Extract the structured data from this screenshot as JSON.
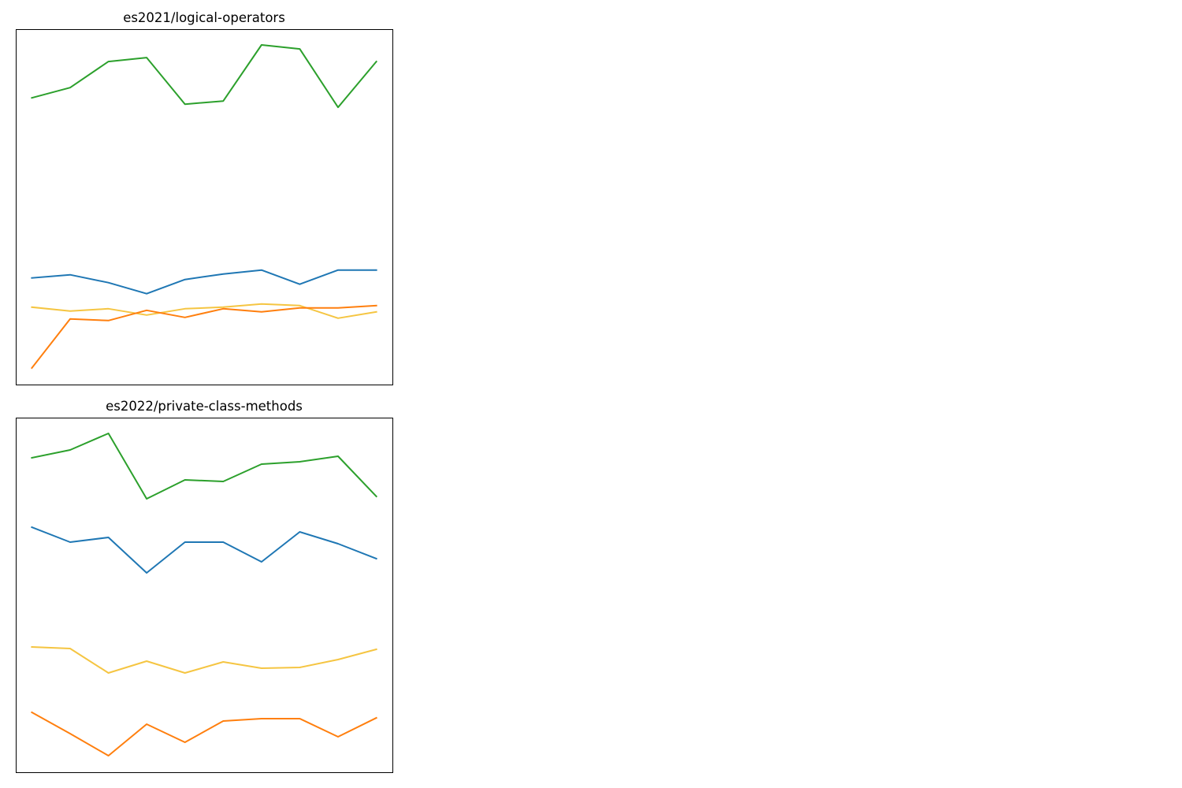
{
  "chart_data": [
    {
      "type": "line",
      "title": "es2021/logical-operators",
      "xlabel": "",
      "ylabel": "",
      "x": [
        1,
        2,
        3,
        4,
        5,
        6,
        7,
        8,
        9,
        10
      ],
      "ylim": [
        0,
        450
      ],
      "xlim": [
        0.58,
        10.42
      ],
      "grid": false,
      "legend": "none",
      "ticks": "none",
      "series": [
        {
          "color": "#2ca02c",
          "values": [
            363,
            376,
            409,
            414,
            355,
            359,
            430,
            425,
            351,
            409
          ]
        },
        {
          "color": "#1f77b4",
          "values": [
            135,
            139,
            129,
            115,
            133,
            140,
            145,
            127,
            145,
            145
          ]
        },
        {
          "color": "#f5c542",
          "values": [
            98,
            93,
            96,
            88,
            96,
            98,
            102,
            100,
            84,
            92
          ]
        },
        {
          "color": "#ff7f0e",
          "values": [
            21,
            83,
            81,
            94,
            85,
            96,
            92,
            97,
            97,
            100
          ]
        }
      ]
    },
    {
      "type": "line",
      "title": "es2022/private-class-methods",
      "xlabel": "",
      "ylabel": "",
      "x": [
        1,
        2,
        3,
        4,
        5,
        6,
        7,
        8,
        9,
        10
      ],
      "ylim": [
        0,
        450
      ],
      "xlim": [
        0.58,
        10.42
      ],
      "grid": false,
      "legend": "none",
      "ticks": "none",
      "series": [
        {
          "color": "#2ca02c",
          "values": [
            399,
            409,
            430,
            347,
            371,
            369,
            391,
            394,
            401,
            350
          ]
        },
        {
          "color": "#1f77b4",
          "values": [
            311,
            292,
            298,
            253,
            292,
            292,
            267,
            305,
            290,
            271
          ]
        },
        {
          "color": "#f5c542",
          "values": [
            159,
            157,
            126,
            141,
            126,
            140,
            132,
            133,
            143,
            156
          ]
        },
        {
          "color": "#ff7f0e",
          "values": [
            76,
            49,
            21,
            61,
            38,
            65,
            68,
            68,
            45,
            69
          ]
        }
      ]
    }
  ]
}
